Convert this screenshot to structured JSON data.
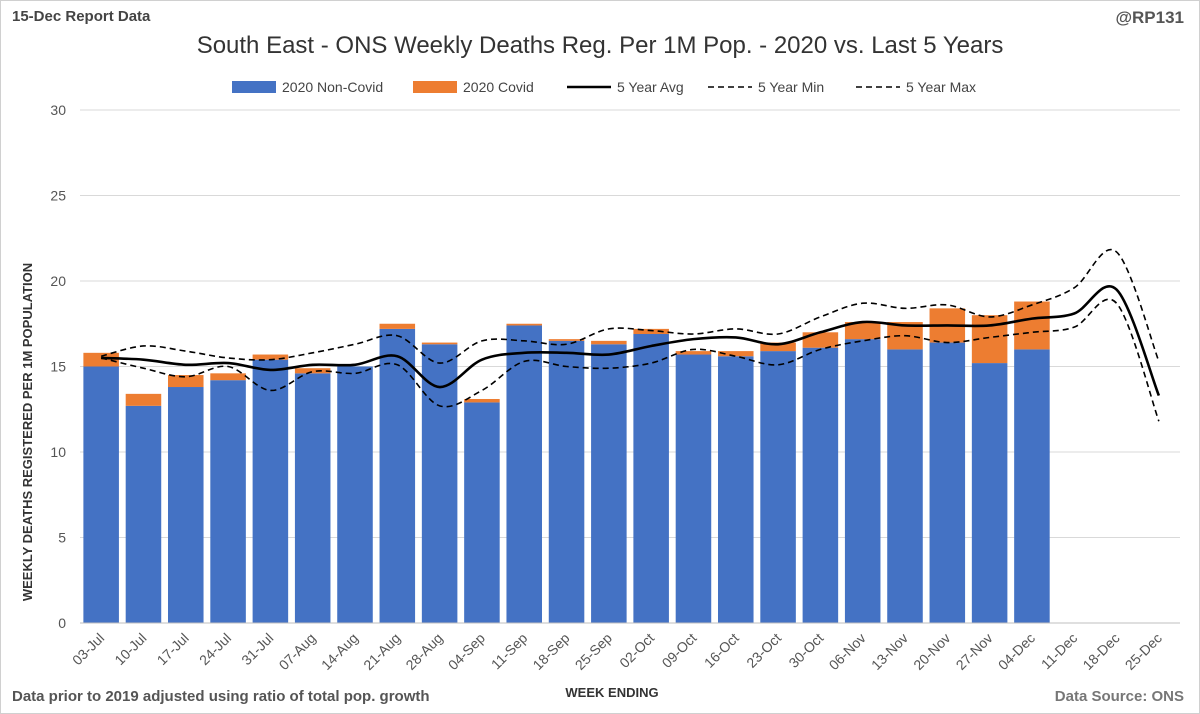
{
  "header": {
    "report_date": "15-Dec Report Data",
    "handle": "@RP131"
  },
  "footer": {
    "note": "Data prior to 2019 adjusted using ratio of total pop. growth",
    "source": "Data Source: ONS"
  },
  "colors": {
    "non_covid": "#4472C4",
    "covid": "#ED7D31",
    "avg": "#000000",
    "grid": "#d9d9d9"
  },
  "chart_data": {
    "type": "bar",
    "title": "South East - ONS Weekly Deaths Reg. Per 1M Pop. - 2020 vs. Last 5 Years",
    "xlabel": "WEEK ENDING",
    "ylabel": "WEEKLY DEATHS REGISTERED PER 1M POPULATION",
    "ylim": [
      0,
      30
    ],
    "yticks": [
      0,
      5,
      10,
      15,
      20,
      25,
      30
    ],
    "categories": [
      "03-Jul",
      "10-Jul",
      "17-Jul",
      "24-Jul",
      "31-Jul",
      "07-Aug",
      "14-Aug",
      "21-Aug",
      "28-Aug",
      "04-Sep",
      "11-Sep",
      "18-Sep",
      "25-Sep",
      "02-Oct",
      "09-Oct",
      "16-Oct",
      "23-Oct",
      "30-Oct",
      "06-Nov",
      "13-Nov",
      "20-Nov",
      "27-Nov",
      "04-Dec",
      "11-Dec",
      "18-Dec",
      "25-Dec"
    ],
    "series": [
      {
        "name": "2020 Non-Covid",
        "kind": "bar-stack",
        "values": [
          15.0,
          12.7,
          13.8,
          14.2,
          15.4,
          14.6,
          15.0,
          17.2,
          16.3,
          12.9,
          17.4,
          16.5,
          16.3,
          16.9,
          15.7,
          15.6,
          15.9,
          16.1,
          16.6,
          16.0,
          16.4,
          15.2,
          16.0,
          null,
          null,
          null
        ]
      },
      {
        "name": "2020 Covid",
        "kind": "bar-stack",
        "values": [
          0.8,
          0.7,
          0.7,
          0.4,
          0.3,
          0.3,
          0.0,
          0.3,
          0.1,
          0.2,
          0.1,
          0.1,
          0.2,
          0.3,
          0.2,
          0.3,
          0.5,
          0.9,
          1.0,
          1.6,
          2.0,
          2.8,
          2.8,
          null,
          null,
          null
        ]
      },
      {
        "name": "5 Year Avg",
        "kind": "line",
        "values": [
          15.5,
          15.4,
          15.1,
          15.2,
          14.8,
          15.1,
          15.1,
          15.6,
          13.8,
          15.4,
          15.8,
          15.8,
          15.7,
          16.2,
          16.6,
          16.7,
          16.3,
          17.0,
          17.6,
          17.4,
          17.4,
          17.4,
          17.8,
          18.1,
          19.5,
          13.3
        ]
      },
      {
        "name": "5 Year Min",
        "kind": "dashed",
        "values": [
          15.5,
          14.9,
          14.4,
          15.0,
          13.6,
          14.7,
          14.6,
          15.1,
          12.7,
          13.6,
          15.3,
          15.0,
          14.9,
          15.2,
          16.0,
          15.6,
          15.1,
          16.0,
          16.5,
          16.8,
          16.4,
          16.7,
          17.0,
          17.3,
          18.7,
          11.8
        ]
      },
      {
        "name": "5 Year Max",
        "kind": "dashed",
        "values": [
          15.6,
          16.2,
          15.9,
          15.5,
          15.4,
          15.8,
          16.3,
          16.8,
          15.2,
          16.5,
          16.5,
          16.3,
          17.2,
          17.1,
          16.9,
          17.2,
          16.9,
          17.9,
          18.7,
          18.4,
          18.6,
          17.9,
          18.6,
          19.6,
          21.7,
          15.3
        ]
      }
    ],
    "legend": [
      "2020 Non-Covid",
      "2020 Covid",
      "5 Year Avg",
      "5 Year Min",
      "5 Year Max"
    ],
    "legend_position": "top",
    "grid": true
  }
}
